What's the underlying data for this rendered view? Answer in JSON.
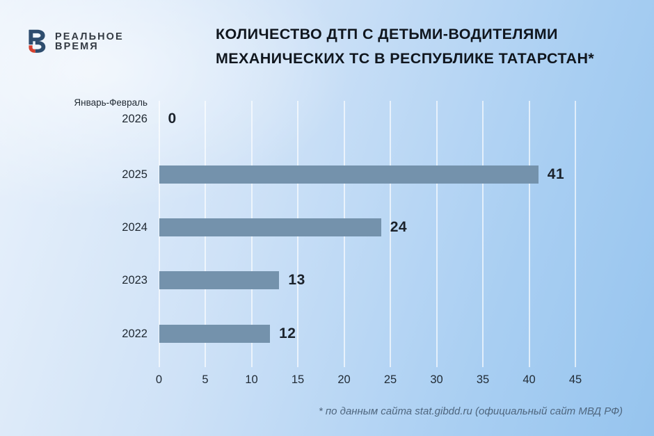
{
  "brand": {
    "line1": "РЕАЛЬНОЕ",
    "line2": "ВРЕМЯ",
    "logo_colors": {
      "blue": "#2e4d6e",
      "red": "#d6402f"
    }
  },
  "header": {
    "title_lines": [
      "КОЛИЧЕСТВО ДТП С ДЕТЬМИ-ВОДИТЕЛЯМИ",
      "МЕХАНИЧЕСКИХ ТС В РЕСПУБЛИКЕ ТАТАРСТАН*"
    ]
  },
  "chart_data": {
    "type": "bar",
    "orientation": "horizontal",
    "title": "КОЛИЧЕСТВО ДТП С ДЕТЬМИ-ВОДИТЕЛЯМИ МЕХАНИЧЕСКИХ ТС В РЕСПУБЛИКЕ ТАТАРСТАН*",
    "period_note": "Январь-Февраль",
    "categories": [
      "2026",
      "2025",
      "2024",
      "2023",
      "2022"
    ],
    "values": [
      0,
      41,
      24,
      13,
      12
    ],
    "x_ticks": [
      0,
      5,
      10,
      15,
      20,
      25,
      30,
      35,
      40,
      45
    ],
    "xlim": [
      0,
      45
    ],
    "grid": true,
    "legend": false,
    "bar_color": "#7492ac",
    "background_colors": [
      "#eaf2fb",
      "#96c4ee"
    ]
  },
  "footer": {
    "source_note": "* по данным сайта stat.gibdd.ru (официальный сайт МВД РФ)"
  }
}
